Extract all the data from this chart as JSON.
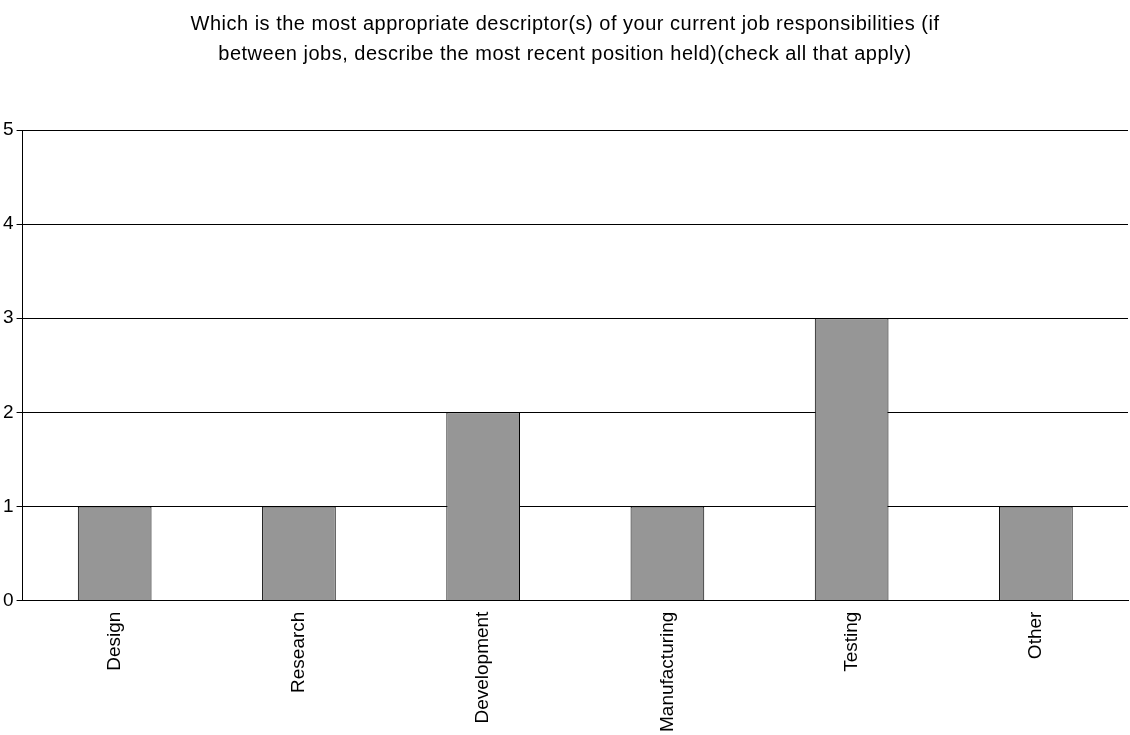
{
  "chart_data": {
    "type": "bar",
    "title": "Which is the most appropriate descriptor(s) of your current job responsibilities (if between jobs, describe the most recent position held)(check all that apply)",
    "categories": [
      "Design",
      "Research",
      "Development",
      "Manufacturing",
      "Testing",
      "Other"
    ],
    "values": [
      1,
      1,
      2,
      1,
      3,
      1
    ],
    "color": "#969696",
    "ylim": [
      0,
      5
    ],
    "yticks": [
      0,
      1,
      2,
      3,
      4,
      5
    ],
    "grid": "y",
    "legend": false
  }
}
